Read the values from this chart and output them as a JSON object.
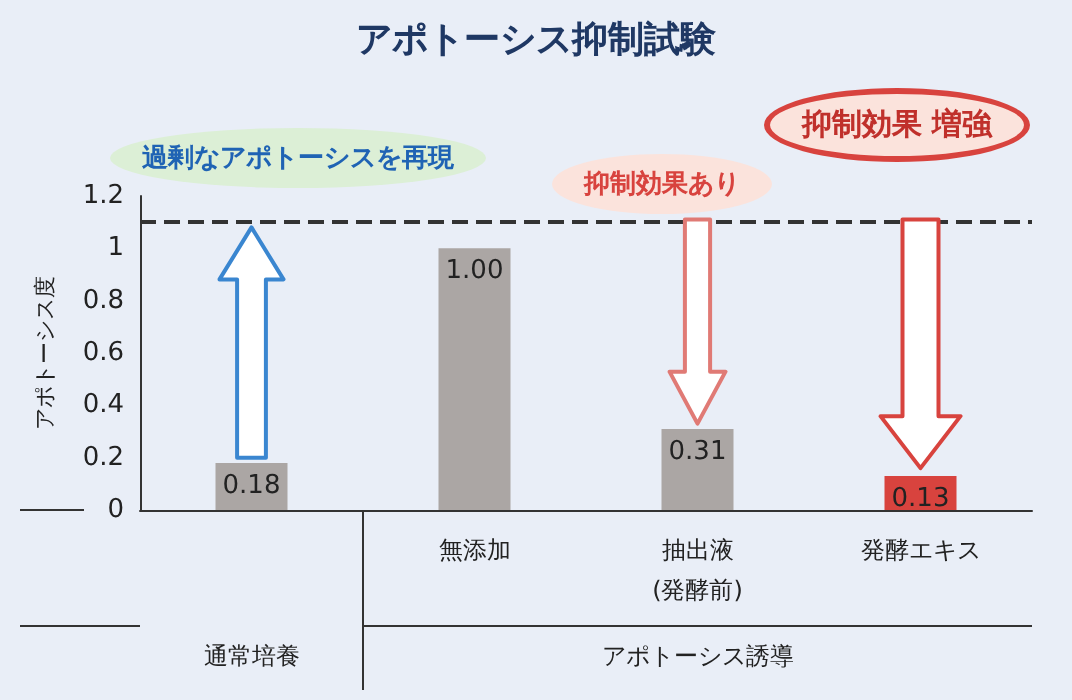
{
  "chart_data": {
    "type": "bar",
    "title": "アポトーシス抑制試験",
    "ylabel": "アポトーシス度",
    "categories": [
      null,
      "無添加",
      "抽出液\n(発酵前)",
      "発酵エキス"
    ],
    "values": [
      0.18,
      1.0,
      0.31,
      0.13
    ],
    "colors": [
      "#aba6a4",
      "#aba6a4",
      "#aba6a4",
      "#d8433e"
    ],
    "value_labels": [
      "0.18",
      "1.00",
      "0.31",
      "0.13"
    ],
    "ylim": [
      0,
      1.2
    ],
    "yticks": [
      0,
      0.2,
      0.4,
      0.6,
      0.8,
      1,
      1.2
    ],
    "grid": false,
    "ref_lines": [
      {
        "axis": "y",
        "value": 1.1,
        "color": "#333333",
        "line_style": "dashed"
      }
    ],
    "annotations": [
      "過剰なアポトーシスを再現",
      "抑制効果あり",
      "抑制効果 増強",
      "通常培養",
      "アポトーシス誘導"
    ]
  }
}
